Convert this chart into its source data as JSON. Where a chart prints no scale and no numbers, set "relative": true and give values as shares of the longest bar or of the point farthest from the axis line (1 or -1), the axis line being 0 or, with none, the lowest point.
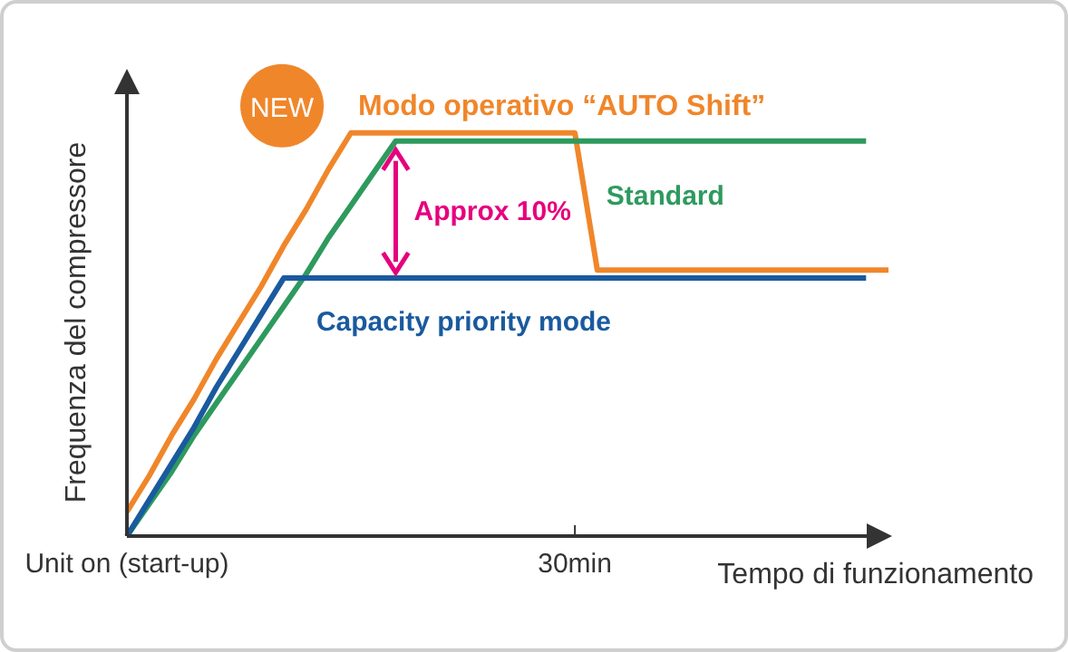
{
  "chart_data": {
    "type": "line",
    "relative": true,
    "xlabel": "Tempo di funzionamento",
    "ylabel": "Frequenza del compressore",
    "categories": [
      "Unit on (start-up)",
      null,
      null,
      null,
      null,
      null,
      null,
      null,
      null,
      null,
      null,
      null,
      null,
      null,
      null,
      null,
      null,
      null,
      null,
      null,
      "30min",
      null,
      null,
      null,
      null,
      null,
      null,
      null,
      null,
      null,
      null,
      null,
      null,
      null,
      null
    ],
    "series": [
      {
        "name": "Modo operativo “AUTO Shift”",
        "color": "#f0862a",
        "values": [
          0.06,
          0.15,
          0.25,
          0.34,
          0.44,
          0.53,
          0.62,
          0.72,
          0.81,
          0.91,
          1,
          1,
          1,
          1,
          1,
          1,
          1,
          1,
          1,
          1,
          1,
          0.66,
          0.66,
          0.66,
          0.66,
          0.66,
          0.66,
          0.66,
          0.66,
          0.66,
          0.66,
          0.66,
          0.66,
          0.66,
          0.66
        ]
      },
      {
        "name": "Standard",
        "color": "#2e9a5e",
        "values": [
          0,
          0.08,
          0.16,
          0.25,
          0.33,
          0.41,
          0.49,
          0.57,
          0.65,
          0.74,
          0.82,
          0.9,
          0.98,
          0.98,
          0.98,
          0.98,
          0.98,
          0.98,
          0.98,
          0.98,
          0.98,
          0.98,
          0.98,
          0.98,
          0.98,
          0.98,
          0.98,
          0.98,
          0.98,
          0.98,
          0.98,
          0.98,
          0.98,
          0.98,
          null
        ]
      },
      {
        "name": "Capacity priority mode",
        "color": "#1a5a9e",
        "values": [
          0,
          0.09,
          0.18,
          0.27,
          0.37,
          0.46,
          0.55,
          0.64,
          0.64,
          0.64,
          0.64,
          0.64,
          0.64,
          0.64,
          0.64,
          0.64,
          0.64,
          0.64,
          0.64,
          0.64,
          0.64,
          0.64,
          0.64,
          0.64,
          0.64,
          0.64,
          0.64,
          0.64,
          0.64,
          0.64,
          0.64,
          0.64,
          0.64,
          0.64,
          null
        ]
      }
    ],
    "annotations": [
      "NEW",
      "Approx 10%"
    ],
    "legend": false,
    "grid": false,
    "marker": "none",
    "line_style": "solid"
  }
}
